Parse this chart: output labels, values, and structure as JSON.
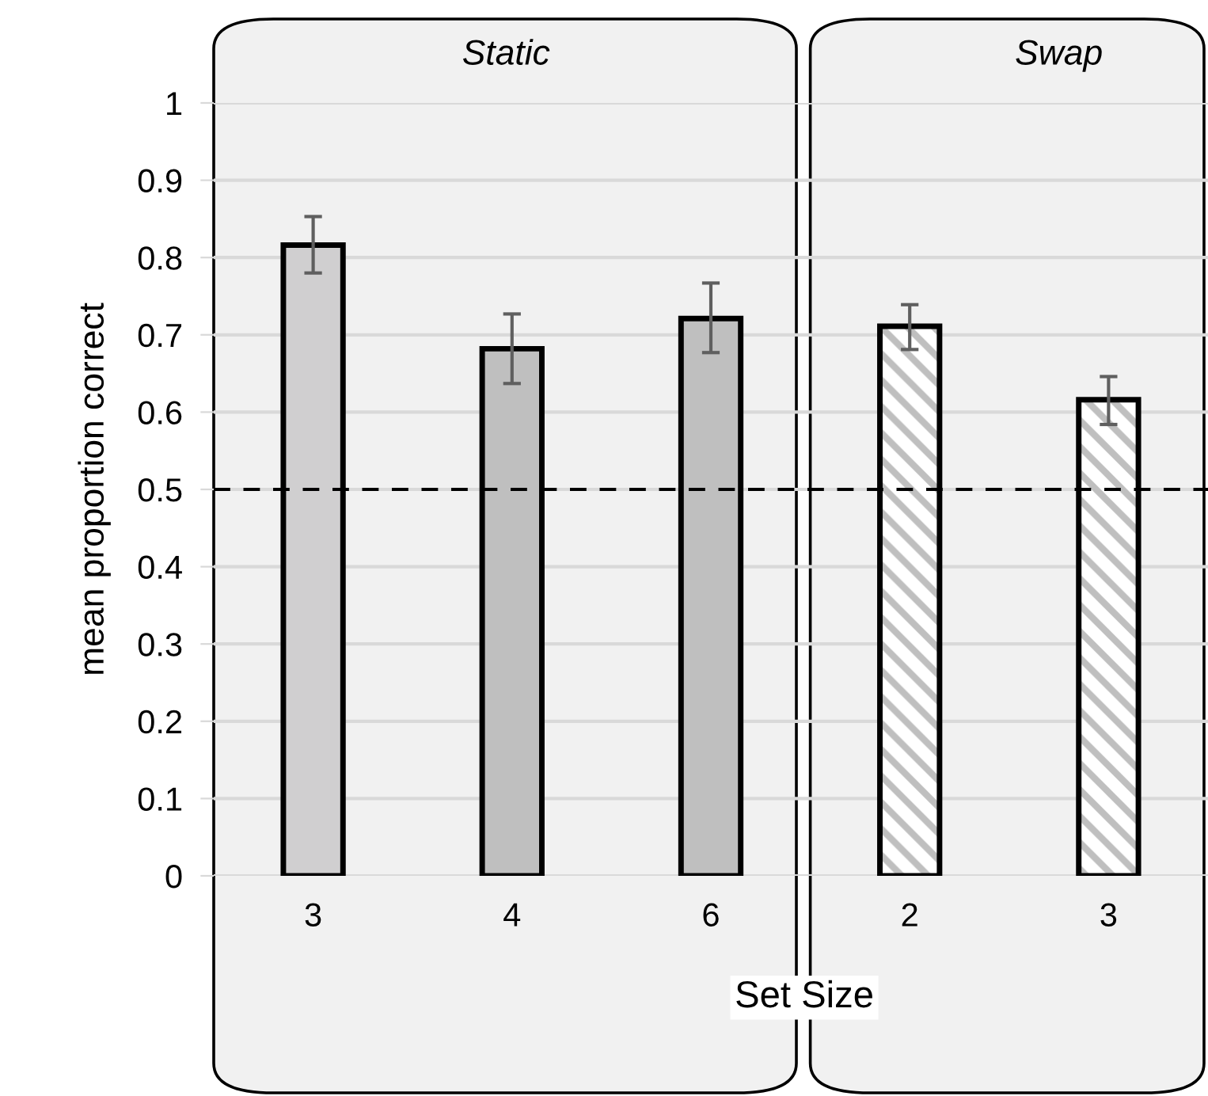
{
  "chart_data": {
    "type": "bar",
    "categories": [
      "3",
      "4",
      "6",
      "2",
      "3"
    ],
    "series": [
      {
        "colors": [
          "#d0cfd0",
          "#bfbfbf",
          "#bfbfbf",
          null,
          null
        ],
        "values": [
          0.816,
          0.682,
          0.721,
          null,
          null
        ],
        "errors": [
          [
            0.78,
            0.853
          ],
          [
            0.637,
            0.727
          ],
          [
            0.677,
            0.767
          ],
          null,
          null
        ]
      },
      {
        "color": "#bfbfbf",
        "values": [
          null,
          null,
          null,
          0.711,
          0.616
        ],
        "errors": [
          null,
          null,
          null,
          [
            0.681,
            0.739
          ],
          [
            0.584,
            0.646
          ]
        ]
      }
    ],
    "xlabel": "Set Size",
    "ylabel": "mean proportion correct",
    "annotations": [
      "Static",
      "Swap"
    ],
    "ylim": [
      0,
      1
    ],
    "yticks": [
      0,
      0.1,
      0.2,
      0.3,
      0.4,
      0.5,
      0.6,
      0.7,
      0.8,
      0.9,
      1
    ],
    "ref_lines": [
      {
        "axis": "y",
        "value": 0.5,
        "line_style": "dashed",
        "color": "#000000"
      }
    ],
    "grid": "y",
    "legend": false
  }
}
